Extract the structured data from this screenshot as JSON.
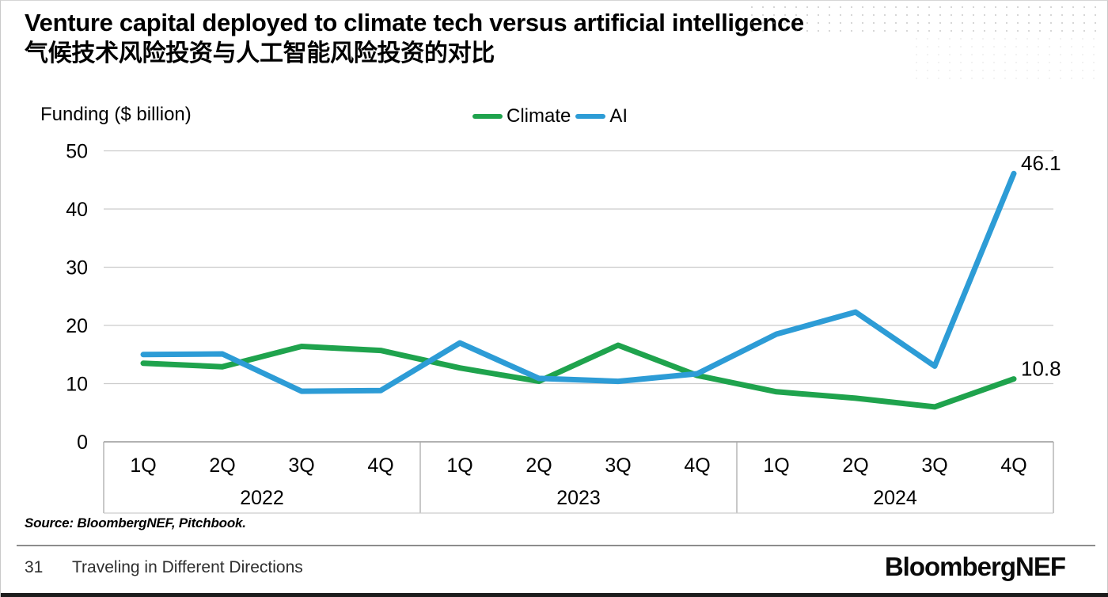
{
  "page": {
    "title_en": "Venture capital deployed to climate tech versus artificial intelligence",
    "title_zh": "气候技术风险投资与人工智能风险投资的对比",
    "axis_title": "Funding ($ billion)",
    "source": "Source: BloombergNEF, Pitchbook.",
    "footer": {
      "page_number": "31",
      "footer_title": "Traveling in Different Directions",
      "logo": "BloombergNEF"
    }
  },
  "legend": {
    "position": "top-center",
    "items": [
      {
        "label": "Climate",
        "color": "#1fa34d"
      },
      {
        "label": "AI",
        "color": "#2d9cd6"
      }
    ]
  },
  "chart_data": {
    "type": "line",
    "title": "Venture capital deployed to climate tech versus artificial intelligence",
    "ylabel": "Funding ($ billion)",
    "xlabel": "",
    "ylim": [
      0,
      50
    ],
    "yticks": [
      0,
      10,
      20,
      30,
      40,
      50
    ],
    "grid": true,
    "legend_position": "top-center",
    "categories": [
      "1Q",
      "2Q",
      "3Q",
      "4Q",
      "1Q",
      "2Q",
      "3Q",
      "4Q",
      "1Q",
      "2Q",
      "3Q",
      "4Q"
    ],
    "years": [
      "2022",
      "2023",
      "2024"
    ],
    "quarters_per_year": 4,
    "series": [
      {
        "name": "Climate",
        "color": "#1fa34d",
        "values": [
          13.5,
          12.9,
          16.4,
          15.7,
          12.7,
          10.4,
          16.6,
          11.4,
          8.6,
          7.5,
          6.0,
          10.8
        ],
        "end_label": "10.8"
      },
      {
        "name": "AI",
        "color": "#2d9cd6",
        "values": [
          15.0,
          15.1,
          8.7,
          8.8,
          17.0,
          10.9,
          10.4,
          11.7,
          18.5,
          22.3,
          13.0,
          46.1
        ],
        "end_label": "46.1"
      }
    ],
    "colors": {
      "gridline": "#cccccc",
      "zero_axis": "#999999",
      "axis_divider": "#aaaaaa",
      "label": "#000000"
    }
  }
}
